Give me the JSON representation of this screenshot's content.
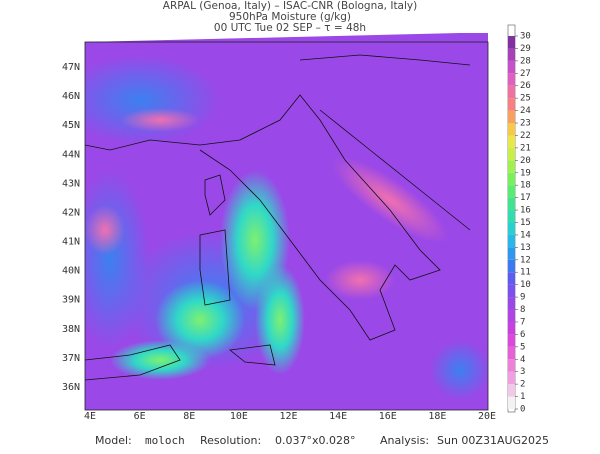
{
  "header": {
    "line1": "ARPAL (Genoa, Italy)  –  ISAC-CNR (Bologna, Italy)",
    "line2": "950hPa Moisture (g/kg)",
    "line3": "00 UTC Tue 02 SEP  –  τ = 48h"
  },
  "map": {
    "lon_labels": [
      "4E",
      "6E",
      "8E",
      "10E",
      "12E",
      "14E",
      "16E",
      "18E",
      "20E"
    ],
    "lat_labels": [
      "47N",
      "46N",
      "45N",
      "44N",
      "43N",
      "42N",
      "41N",
      "40N",
      "39N",
      "38N",
      "37N",
      "36N"
    ]
  },
  "colorbar": {
    "ticks": [
      0,
      1,
      2,
      3,
      4,
      5,
      6,
      7,
      8,
      9,
      10,
      11,
      12,
      13,
      14,
      15,
      16,
      17,
      18,
      19,
      20,
      21,
      22,
      23,
      24,
      25,
      26,
      27,
      28,
      29,
      30
    ],
    "colors": [
      "#f4f0f4",
      "#f0c8e8",
      "#f0a0e0",
      "#ee80da",
      "#e860d8",
      "#dc48dc",
      "#c840e0",
      "#b044e4",
      "#9a48e8",
      "#7c50ec",
      "#5c5cf0",
      "#3c78f0",
      "#2c98f0",
      "#28b8e8",
      "#28d0d0",
      "#30dcb0",
      "#40e490",
      "#58ec70",
      "#78f058",
      "#a0f050",
      "#c8f048",
      "#e8e848",
      "#f8c848",
      "#f8a060",
      "#f88080",
      "#f070a0",
      "#e060c0",
      "#c850c8",
      "#a840b8",
      "#8030a0"
    ]
  },
  "footer": {
    "model_label": "Model:",
    "model": "moloch",
    "resolution_label": "Resolution:",
    "resolution": "0.037°x0.028°",
    "analysis_label": "Analysis:",
    "analysis": "Sun 00Z31AUG2025"
  }
}
